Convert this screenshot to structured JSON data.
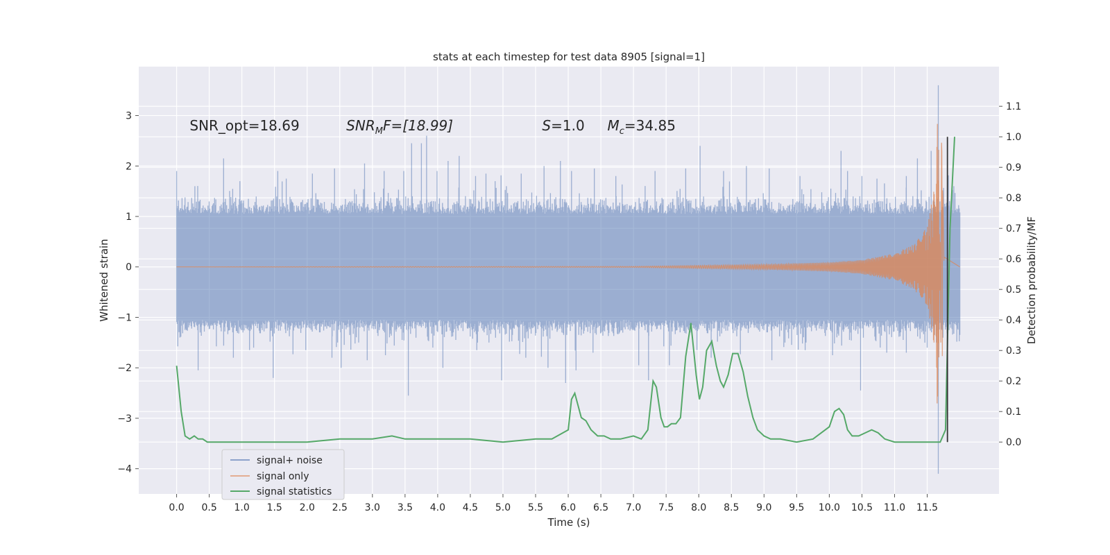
{
  "chart_data": {
    "type": "line",
    "title": "stats at each timestep for test data 8905 [signal=1]",
    "xlabel": "Time (s)",
    "ylabel": "Whitened strain",
    "y2label": "Detection probability/MF",
    "xlim": [
      -0.58,
      12.6
    ],
    "ylim": [
      -4.5,
      3.97
    ],
    "y2lim": [
      -0.17,
      1.23
    ],
    "xticks": [
      0.0,
      0.5,
      1.0,
      1.5,
      2.0,
      2.5,
      3.0,
      3.5,
      4.0,
      4.5,
      5.0,
      5.5,
      6.0,
      6.5,
      7.0,
      7.5,
      8.0,
      8.5,
      9.0,
      9.5,
      10.0,
      10.5,
      11.0,
      11.5
    ],
    "xtick_labels": [
      "0.0",
      "0.5",
      "1.0",
      "1.5",
      "2.0",
      "2.5",
      "3.0",
      "3.5",
      "4.0",
      "4.5",
      "5.0",
      "5.5",
      "6.0",
      "6.5",
      "7.0",
      "7.5",
      "8.0",
      "8.5",
      "9.0",
      "9.5",
      "10.0",
      "10.5",
      "11.0",
      "11.5"
    ],
    "yticks": [
      -4,
      -3,
      -2,
      -1,
      0,
      1,
      2,
      3
    ],
    "ytick_labels": [
      "−4",
      "−3",
      "−2",
      "−1",
      "0",
      "1",
      "2",
      "3"
    ],
    "y2ticks": [
      0.0,
      0.1,
      0.2,
      0.3,
      0.4,
      0.5,
      0.6,
      0.7,
      0.8,
      0.9,
      1.0,
      1.1
    ],
    "y2tick_labels": [
      "0.0",
      "0.1",
      "0.2",
      "0.3",
      "0.4",
      "0.5",
      "0.6",
      "0.7",
      "0.8",
      "0.9",
      "1.0",
      "1.1"
    ],
    "grid": true,
    "legend_position": "lower-left",
    "annotations": [
      {
        "text": "SNR_opt=18.69",
        "x": 0.2
      },
      {
        "text": "SNR",
        "sub": "M",
        "tail": "F=[18.99]",
        "italic": true,
        "x": 2.6
      },
      {
        "text": "S",
        "tail": "=1.0",
        "italic": true,
        "x": 5.6
      },
      {
        "text": "M",
        "sub": "c",
        "tail": "=34.85",
        "italic": true,
        "x": 6.6
      }
    ],
    "annotation_y": 2.8,
    "vline": {
      "x": 11.81,
      "y2": [
        0.0,
        1.0
      ],
      "color": "#333333"
    },
    "series": [
      {
        "name": "signal+ noise",
        "color": "#4c72b0",
        "axis": "left",
        "t_start": 0.0,
        "t_end": 12.0,
        "band_upper": 1.05,
        "band_lower": -1.05,
        "peaks_upper": [
          [
            0.0,
            1.9
          ],
          [
            0.28,
            1.6
          ],
          [
            0.72,
            2.15
          ],
          [
            0.97,
            1.7
          ],
          [
            1.55,
            1.9
          ],
          [
            1.68,
            1.75
          ],
          [
            2.08,
            1.85
          ],
          [
            2.42,
            1.95
          ],
          [
            2.88,
            2.05
          ],
          [
            3.18,
            1.9
          ],
          [
            3.48,
            1.9
          ],
          [
            3.6,
            2.45
          ],
          [
            3.75,
            2.45
          ],
          [
            3.83,
            2.6
          ],
          [
            3.99,
            1.9
          ],
          [
            4.16,
            2.1
          ],
          [
            4.33,
            2.2
          ],
          [
            4.58,
            1.8
          ],
          [
            4.74,
            1.85
          ],
          [
            4.88,
            1.7
          ],
          [
            5.28,
            1.85
          ],
          [
            5.63,
            2.0
          ],
          [
            5.88,
            2.1
          ],
          [
            6.05,
            1.9
          ],
          [
            6.4,
            1.95
          ],
          [
            6.73,
            1.8
          ],
          [
            7.33,
            1.9
          ],
          [
            7.8,
            1.95
          ],
          [
            8.02,
            2.4
          ],
          [
            8.38,
            1.9
          ],
          [
            8.73,
            2.0
          ],
          [
            9.08,
            1.95
          ],
          [
            9.55,
            1.8
          ],
          [
            10.18,
            2.3
          ],
          [
            10.28,
            1.9
          ],
          [
            10.5,
            1.8
          ],
          [
            10.73,
            1.75
          ],
          [
            11.18,
            1.8
          ],
          [
            11.35,
            2.15
          ],
          [
            11.56,
            2.3
          ],
          [
            11.67,
            3.6
          ]
        ],
        "peaks_lower": [
          [
            0.05,
            -1.4
          ],
          [
            0.33,
            -2.05
          ],
          [
            0.87,
            -1.8
          ],
          [
            1.18,
            -1.6
          ],
          [
            1.48,
            -2.2
          ],
          [
            1.98,
            -1.65
          ],
          [
            2.38,
            -1.8
          ],
          [
            2.52,
            -2.0
          ],
          [
            2.92,
            -1.85
          ],
          [
            3.2,
            -1.75
          ],
          [
            3.55,
            -2.55
          ],
          [
            4.08,
            -2.0
          ],
          [
            4.6,
            -1.65
          ],
          [
            4.98,
            -2.25
          ],
          [
            5.35,
            -1.8
          ],
          [
            5.69,
            -2.0
          ],
          [
            5.96,
            -2.3
          ],
          [
            6.12,
            -2.05
          ],
          [
            6.38,
            -1.7
          ],
          [
            7.08,
            -1.95
          ],
          [
            7.23,
            -2.25
          ],
          [
            7.55,
            -1.95
          ],
          [
            8.19,
            -1.8
          ],
          [
            9.12,
            -1.85
          ],
          [
            9.63,
            -1.65
          ],
          [
            10.05,
            -1.75
          ],
          [
            10.48,
            -2.45
          ],
          [
            10.88,
            -1.7
          ],
          [
            11.18,
            -1.7
          ],
          [
            11.5,
            -1.6
          ],
          [
            11.67,
            -4.1
          ]
        ]
      },
      {
        "name": "signal only",
        "color": "#dd8452",
        "axis": "left",
        "chirp_amplitude": [
          [
            0.0,
            0.0
          ],
          [
            7.0,
            0.01
          ],
          [
            9.0,
            0.05
          ],
          [
            10.0,
            0.09
          ],
          [
            10.5,
            0.14
          ],
          [
            11.0,
            0.27
          ],
          [
            11.3,
            0.45
          ],
          [
            11.5,
            0.8
          ],
          [
            11.6,
            1.5
          ],
          [
            11.67,
            3.2
          ],
          [
            11.72,
            -3.0
          ],
          [
            11.76,
            0.2
          ],
          [
            12.0,
            0.0
          ]
        ]
      },
      {
        "name": "signal statistics",
        "color": "#55a868",
        "axis": "right",
        "x": [
          0.0,
          0.07,
          0.13,
          0.2,
          0.27,
          0.33,
          0.4,
          0.47,
          0.55,
          0.7,
          1.0,
          1.5,
          2.0,
          2.5,
          3.0,
          3.3,
          3.5,
          3.7,
          4.0,
          4.5,
          5.0,
          5.5,
          5.75,
          6.0,
          6.05,
          6.1,
          6.15,
          6.2,
          6.27,
          6.35,
          6.45,
          6.55,
          6.65,
          6.8,
          7.0,
          7.12,
          7.22,
          7.3,
          7.35,
          7.42,
          7.47,
          7.52,
          7.58,
          7.65,
          7.72,
          7.8,
          7.88,
          7.96,
          8.01,
          8.06,
          8.12,
          8.2,
          8.27,
          8.33,
          8.38,
          8.45,
          8.52,
          8.6,
          8.68,
          8.75,
          8.83,
          8.9,
          9.0,
          9.1,
          9.25,
          9.5,
          9.75,
          10.0,
          10.08,
          10.15,
          10.22,
          10.28,
          10.35,
          10.45,
          10.55,
          10.65,
          10.75,
          10.85,
          11.0,
          11.25,
          11.5,
          11.6,
          11.7,
          11.78,
          11.85,
          11.92
        ],
        "values": [
          0.25,
          0.1,
          0.02,
          0.01,
          0.02,
          0.01,
          0.01,
          0.0,
          0.0,
          0.0,
          0.0,
          0.0,
          0.0,
          0.01,
          0.01,
          0.02,
          0.01,
          0.01,
          0.01,
          0.01,
          0.0,
          0.01,
          0.01,
          0.04,
          0.14,
          0.16,
          0.12,
          0.08,
          0.07,
          0.04,
          0.02,
          0.02,
          0.01,
          0.01,
          0.02,
          0.01,
          0.04,
          0.2,
          0.18,
          0.08,
          0.05,
          0.05,
          0.06,
          0.06,
          0.08,
          0.28,
          0.39,
          0.22,
          0.14,
          0.18,
          0.3,
          0.33,
          0.25,
          0.2,
          0.18,
          0.22,
          0.29,
          0.29,
          0.23,
          0.15,
          0.08,
          0.04,
          0.02,
          0.01,
          0.01,
          0.0,
          0.01,
          0.05,
          0.1,
          0.11,
          0.09,
          0.04,
          0.02,
          0.02,
          0.03,
          0.04,
          0.03,
          0.01,
          0.0,
          0.0,
          0.0,
          0.0,
          0.0,
          0.04,
          0.7,
          1.0
        ]
      }
    ]
  }
}
